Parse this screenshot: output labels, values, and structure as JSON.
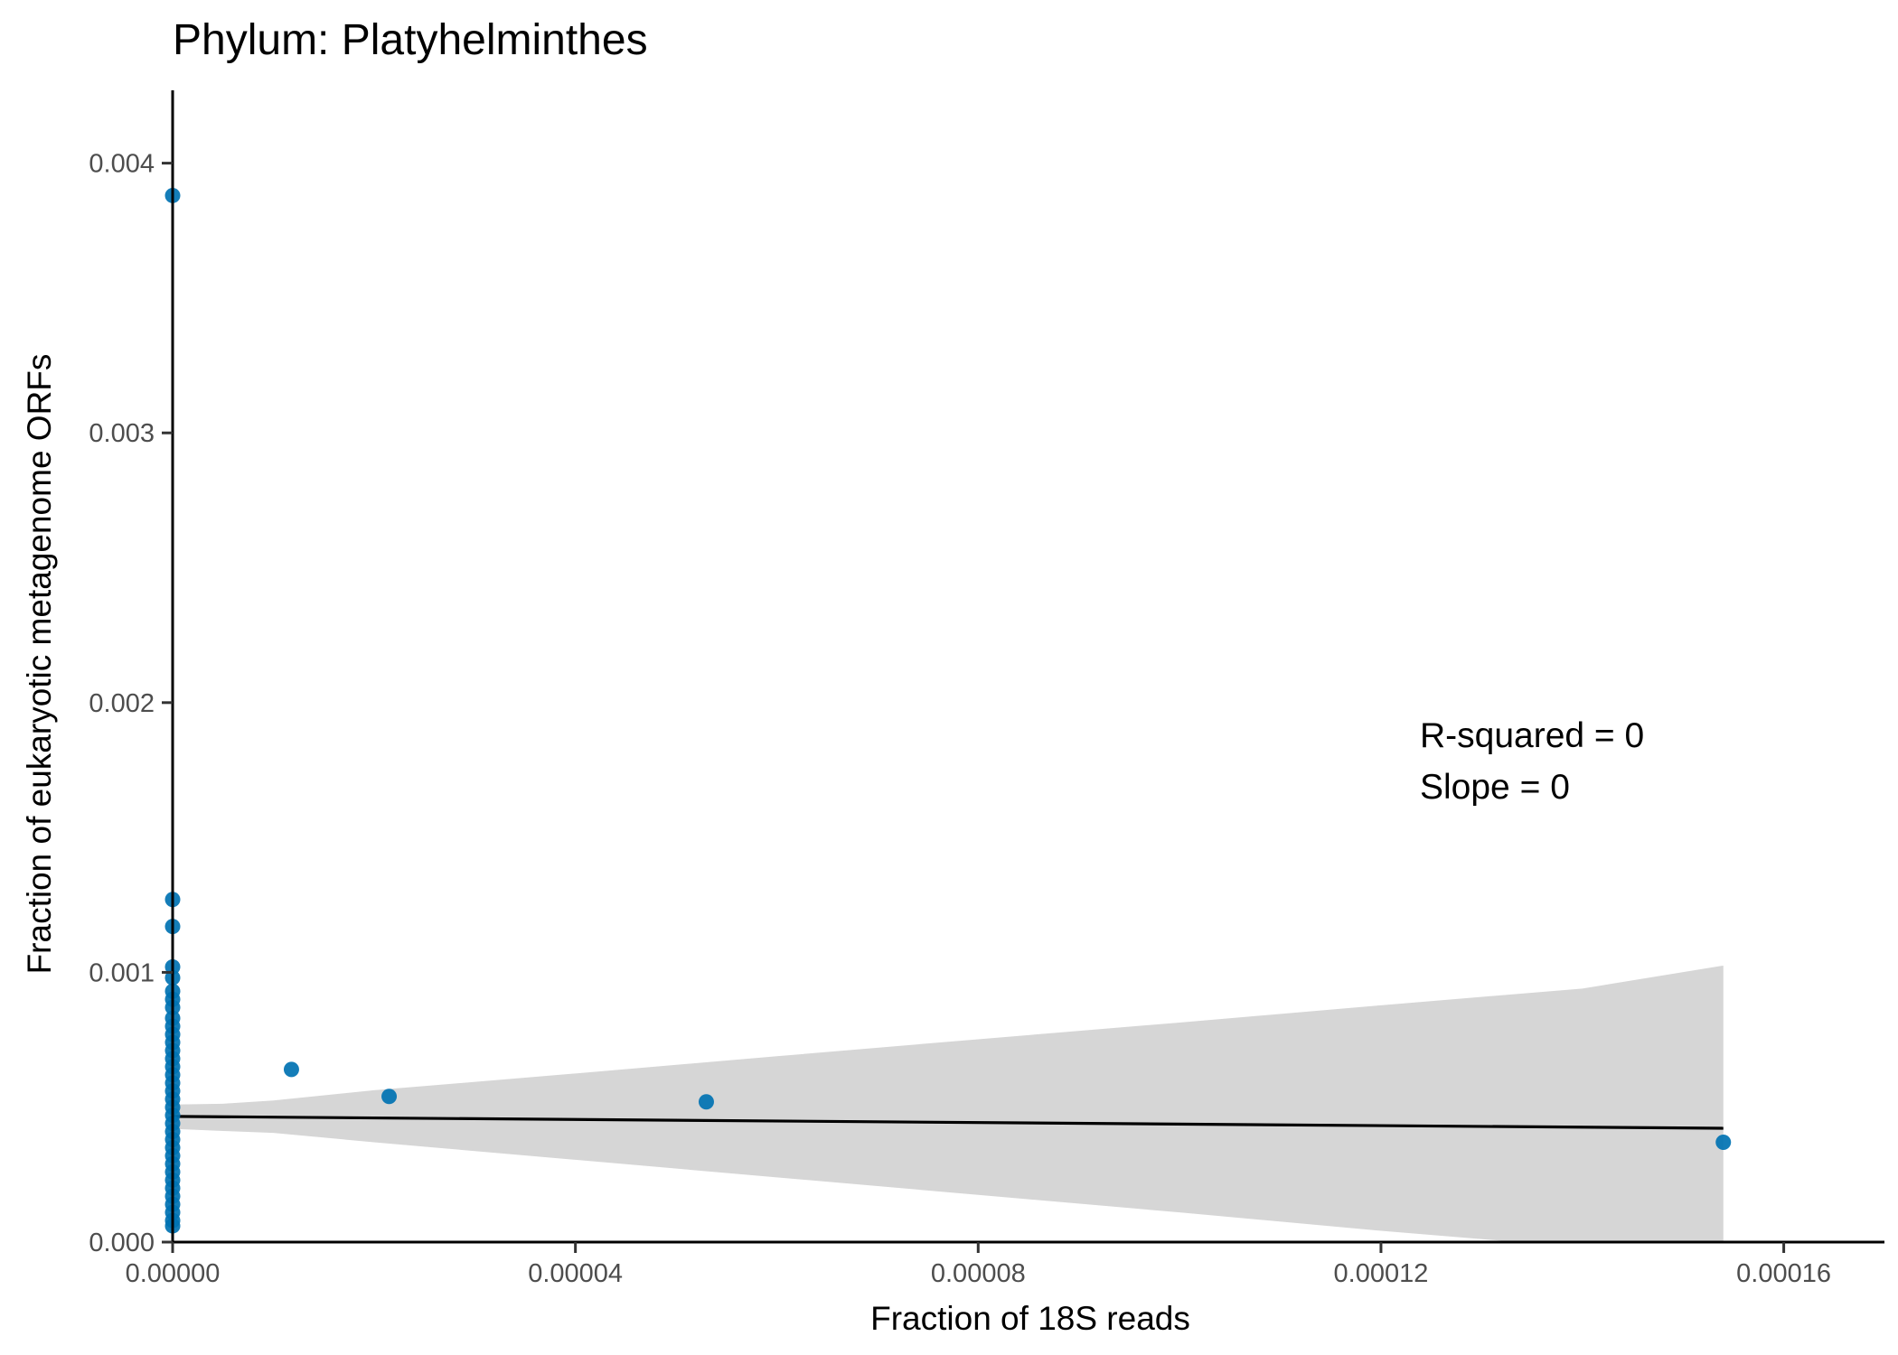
{
  "chart_data": {
    "type": "scatter",
    "title": "Phylum:  Platyhelminthes",
    "xlabel": "Fraction of 18S reads",
    "ylabel": "Fraction of eukaryotic metagenome ORFs",
    "xlim": [
      0,
      0.00017
    ],
    "ylim": [
      0,
      0.00427
    ],
    "x_ticks": [
      0,
      4e-05,
      8e-05,
      0.00012,
      0.00016
    ],
    "x_tick_labels": [
      "0.00000",
      "0.00004",
      "0.00008",
      "0.00012",
      "0.00016"
    ],
    "y_ticks": [
      0,
      0.001,
      0.002,
      0.003,
      0.004
    ],
    "y_tick_labels": [
      "0.000",
      "0.001",
      "0.002",
      "0.003",
      "0.004"
    ],
    "grid": false,
    "point_color": "#0072b2",
    "line_color": "#000000",
    "band_color": "#d6d6d6",
    "series": [
      {
        "points": [
          {
            "x": 0,
            "y": 0.00388
          },
          {
            "x": 0,
            "y": 0.00127
          },
          {
            "x": 0,
            "y": 0.00117
          },
          {
            "x": 0,
            "y": 0.00102
          },
          {
            "x": 0,
            "y": 0.00098
          },
          {
            "x": 0,
            "y": 0.00093
          },
          {
            "x": 0,
            "y": 0.0009
          },
          {
            "x": 0,
            "y": 0.00087
          },
          {
            "x": 0,
            "y": 0.00083
          },
          {
            "x": 0,
            "y": 0.0008
          },
          {
            "x": 0,
            "y": 0.00077
          },
          {
            "x": 0,
            "y": 0.00074
          },
          {
            "x": 0,
            "y": 0.00071
          },
          {
            "x": 0,
            "y": 0.00068
          },
          {
            "x": 0,
            "y": 0.00065
          },
          {
            "x": 0,
            "y": 0.00062
          },
          {
            "x": 0,
            "y": 0.00059
          },
          {
            "x": 0,
            "y": 0.00056
          },
          {
            "x": 0,
            "y": 0.00053
          },
          {
            "x": 0,
            "y": 0.0005
          },
          {
            "x": 0,
            "y": 0.00047
          },
          {
            "x": 0,
            "y": 0.00044
          },
          {
            "x": 0,
            "y": 0.00041
          },
          {
            "x": 0,
            "y": 0.00038
          },
          {
            "x": 0,
            "y": 0.00035
          },
          {
            "x": 0,
            "y": 0.00032
          },
          {
            "x": 0,
            "y": 0.00029
          },
          {
            "x": 0,
            "y": 0.00026
          },
          {
            "x": 0,
            "y": 0.00023
          },
          {
            "x": 0,
            "y": 0.0002
          },
          {
            "x": 0,
            "y": 0.00017
          },
          {
            "x": 0,
            "y": 0.00014
          },
          {
            "x": 0,
            "y": 0.00011
          },
          {
            "x": 0,
            "y": 8e-05
          },
          {
            "x": 0,
            "y": 6e-05
          },
          {
            "x": 1.18e-05,
            "y": 0.00064
          },
          {
            "x": 2.15e-05,
            "y": 0.00054
          },
          {
            "x": 5.3e-05,
            "y": 0.00052
          },
          {
            "x": 0.000154,
            "y": 0.00037
          }
        ]
      }
    ],
    "fit_line": {
      "x": [
        0,
        0.000154
      ],
      "y": [
        0.000466,
        0.000422
      ]
    },
    "confidence_band": {
      "x": [
        0,
        5e-06,
        1e-05,
        2e-05,
        4e-05,
        6e-05,
        8e-05,
        0.0001,
        0.00012,
        0.00014,
        0.000154
      ],
      "upper": [
        0.00051,
        0.000513,
        0.000525,
        0.000563,
        0.000625,
        0.000689,
        0.000752,
        0.000814,
        0.000878,
        0.00094,
        0.001025
      ],
      "lower": [
        0.00042,
        0.000412,
        0.000405,
        0.00037,
        0.000305,
        0.00024,
        0.000175,
        0.00011,
        4.2e-05,
        -2e-05,
        -0.00018
      ]
    },
    "annotations": [
      "R-squared =  0",
      "Slope =  0"
    ]
  }
}
